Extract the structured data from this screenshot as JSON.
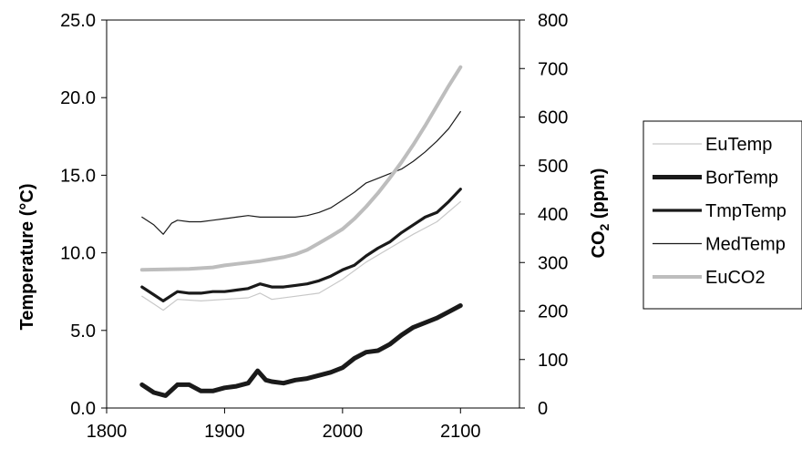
{
  "chart_data": {
    "type": "line",
    "xlabel": "",
    "ylabel": "Temperature (°C)",
    "y2label_main": "CO",
    "y2label_sub": "2",
    "y2label_unit": " (ppm)",
    "xlim": [
      1800,
      2150
    ],
    "ylim": [
      0,
      25
    ],
    "y2lim": [
      0,
      800
    ],
    "x_ticks": [
      "1800",
      "1900",
      "2000",
      "2100"
    ],
    "x_tick_values": [
      1800,
      1900,
      2000,
      2100
    ],
    "y_ticks": [
      "0.0",
      "5.0",
      "10.0",
      "15.0",
      "20.0",
      "25.0"
    ],
    "y_tick_values": [
      0,
      5,
      10,
      15,
      20,
      25
    ],
    "y2_ticks": [
      "0",
      "100",
      "200",
      "300",
      "400",
      "500",
      "600",
      "700",
      "800"
    ],
    "y2_tick_values": [
      0,
      100,
      200,
      300,
      400,
      500,
      600,
      700,
      800
    ],
    "grid": false,
    "legend_position": "right",
    "series": [
      {
        "name": "EuTemp",
        "axis": "left",
        "color": "#c8c8c8",
        "width": 1.2,
        "x": [
          1830,
          1840,
          1848,
          1860,
          1880,
          1900,
          1920,
          1930,
          1940,
          1960,
          1980,
          2000,
          2020,
          2040,
          2060,
          2080,
          2100
        ],
        "y": [
          7.2,
          6.7,
          6.3,
          7.0,
          6.9,
          7.0,
          7.1,
          7.4,
          7.0,
          7.2,
          7.4,
          8.3,
          9.4,
          10.3,
          11.2,
          12.0,
          13.3
        ]
      },
      {
        "name": "BorTemp",
        "axis": "left",
        "color": "#1a1a1a",
        "width": 5,
        "x": [
          1830,
          1840,
          1850,
          1860,
          1870,
          1880,
          1890,
          1900,
          1910,
          1920,
          1928,
          1935,
          1940,
          1950,
          1960,
          1970,
          1980,
          1990,
          2000,
          2010,
          2020,
          2030,
          2040,
          2050,
          2060,
          2070,
          2080,
          2090,
          2100
        ],
        "y": [
          1.5,
          1.0,
          0.8,
          1.5,
          1.5,
          1.1,
          1.1,
          1.3,
          1.4,
          1.6,
          2.4,
          1.8,
          1.7,
          1.6,
          1.8,
          1.9,
          2.1,
          2.3,
          2.6,
          3.2,
          3.6,
          3.7,
          4.1,
          4.7,
          5.2,
          5.5,
          5.8,
          6.2,
          6.6
        ]
      },
      {
        "name": "TmpTemp",
        "axis": "left",
        "color": "#1a1a1a",
        "width": 3.2,
        "x": [
          1830,
          1840,
          1848,
          1860,
          1870,
          1880,
          1890,
          1900,
          1910,
          1920,
          1930,
          1940,
          1950,
          1960,
          1970,
          1980,
          1990,
          2000,
          2010,
          2020,
          2030,
          2040,
          2050,
          2060,
          2070,
          2080,
          2090,
          2100
        ],
        "y": [
          7.8,
          7.3,
          6.9,
          7.5,
          7.4,
          7.4,
          7.5,
          7.5,
          7.6,
          7.7,
          8.0,
          7.8,
          7.8,
          7.9,
          8.0,
          8.2,
          8.5,
          8.9,
          9.2,
          9.8,
          10.3,
          10.7,
          11.3,
          11.8,
          12.3,
          12.6,
          13.3,
          14.1
        ]
      },
      {
        "name": "MedTemp",
        "axis": "left",
        "color": "#1a1a1a",
        "width": 1.2,
        "x": [
          1830,
          1840,
          1848,
          1855,
          1860,
          1870,
          1880,
          1890,
          1900,
          1910,
          1920,
          1930,
          1940,
          1950,
          1960,
          1970,
          1980,
          1990,
          2000,
          2010,
          2020,
          2030,
          2040,
          2050,
          2060,
          2070,
          2080,
          2090,
          2100
        ],
        "y": [
          12.3,
          11.8,
          11.2,
          11.9,
          12.1,
          12.0,
          12.0,
          12.1,
          12.2,
          12.3,
          12.4,
          12.3,
          12.3,
          12.3,
          12.3,
          12.4,
          12.6,
          12.9,
          13.4,
          13.9,
          14.5,
          14.8,
          15.1,
          15.4,
          15.9,
          16.5,
          17.2,
          18.0,
          19.1
        ]
      },
      {
        "name": "EuCO2",
        "axis": "right",
        "color": "#bdbdbd",
        "width": 4,
        "x": [
          1830,
          1850,
          1870,
          1890,
          1900,
          1910,
          1920,
          1930,
          1940,
          1950,
          1960,
          1970,
          1980,
          1990,
          2000,
          2010,
          2020,
          2030,
          2040,
          2050,
          2060,
          2070,
          2080,
          2090,
          2100
        ],
        "y": [
          285,
          286,
          287,
          290,
          294,
          297,
          300,
          303,
          307,
          311,
          317,
          326,
          340,
          354,
          369,
          390,
          415,
          443,
          474,
          507,
          543,
          582,
          623,
          664,
          703
        ]
      }
    ]
  }
}
